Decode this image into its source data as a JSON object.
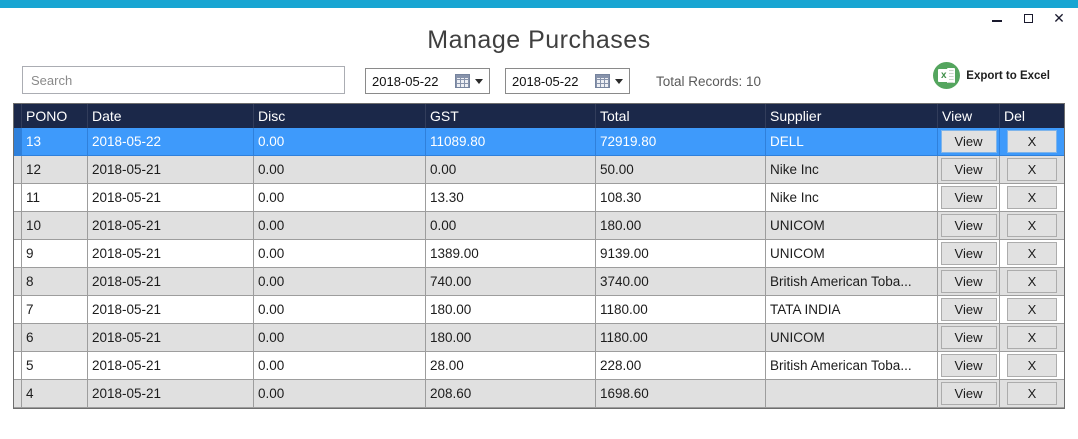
{
  "window": {
    "title": "Manage Purchases",
    "close_glyph": "✕"
  },
  "toolbar": {
    "search_placeholder": "Search",
    "date_from": "2018-05-22",
    "date_to": "2018-05-22",
    "total_records_label": "Total Records: 10",
    "export_label": "Export to Excel",
    "excel_icon_letter": "x"
  },
  "table": {
    "columns": [
      "PONO",
      "Date",
      "Disc",
      "GST",
      "Total",
      "Supplier",
      "View",
      "Del"
    ],
    "view_button_label": "View",
    "delete_button_label": "X",
    "rows": [
      {
        "pono": "13",
        "date": "2018-05-22",
        "disc": "0.00",
        "gst": "11089.80",
        "total": "72919.80",
        "supplier": "DELL",
        "selected": true
      },
      {
        "pono": "12",
        "date": "2018-05-21",
        "disc": "0.00",
        "gst": "0.00",
        "total": "50.00",
        "supplier": "Nike Inc"
      },
      {
        "pono": "11",
        "date": "2018-05-21",
        "disc": "0.00",
        "gst": "13.30",
        "total": "108.30",
        "supplier": "Nike Inc"
      },
      {
        "pono": "10",
        "date": "2018-05-21",
        "disc": "0.00",
        "gst": "0.00",
        "total": "180.00",
        "supplier": "UNICOM"
      },
      {
        "pono": "9",
        "date": "2018-05-21",
        "disc": "0.00",
        "gst": "1389.00",
        "total": "9139.00",
        "supplier": "UNICOM"
      },
      {
        "pono": "8",
        "date": "2018-05-21",
        "disc": "0.00",
        "gst": "740.00",
        "total": "3740.00",
        "supplier": "British American Toba..."
      },
      {
        "pono": "7",
        "date": "2018-05-21",
        "disc": "0.00",
        "gst": "180.00",
        "total": "1180.00",
        "supplier": "TATA INDIA"
      },
      {
        "pono": "6",
        "date": "2018-05-21",
        "disc": "0.00",
        "gst": "180.00",
        "total": "1180.00",
        "supplier": "UNICOM"
      },
      {
        "pono": "5",
        "date": "2018-05-21",
        "disc": "0.00",
        "gst": "28.00",
        "total": "228.00",
        "supplier": "British American Toba..."
      },
      {
        "pono": "4",
        "date": "2018-05-21",
        "disc": "0.00",
        "gst": "208.60",
        "total": "1698.60",
        "supplier": ""
      }
    ]
  },
  "colors": {
    "accent_topbar": "#18A5D2",
    "table_header": "#1B2849",
    "selected_row": "#3E9AFB",
    "selected_row_header": "#2F80DB",
    "alt_row": "#E0E0E0",
    "excel_green": "#54A55E"
  }
}
